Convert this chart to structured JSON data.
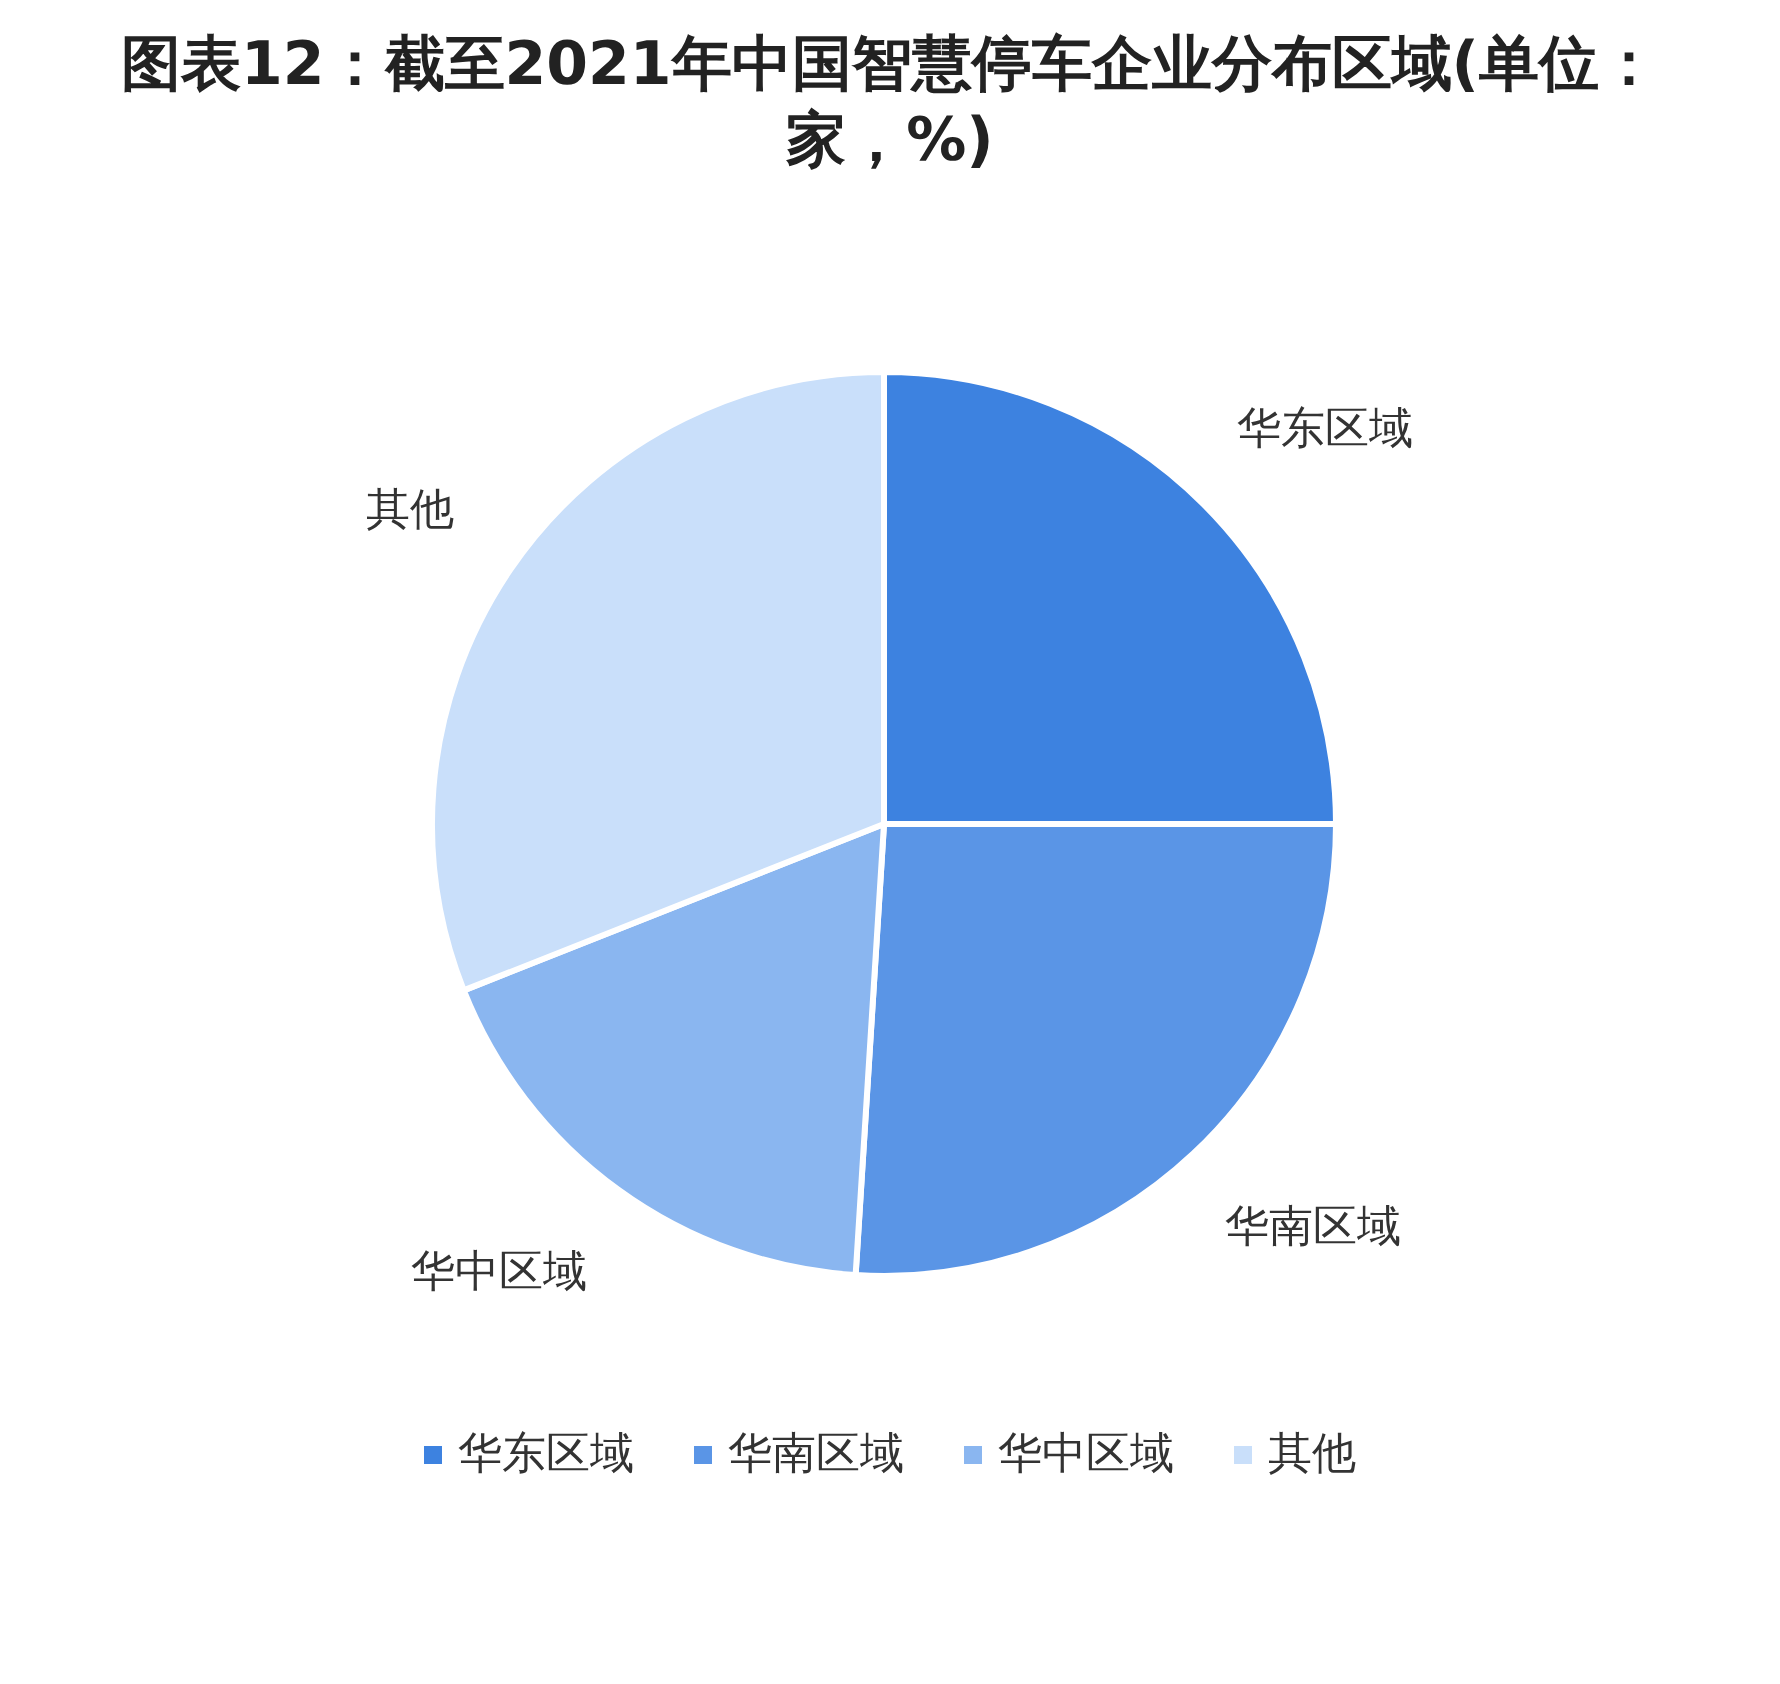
{
  "chart_data": {
    "type": "pie",
    "title": "图表12：截至2021年中国智慧停车企业分布区域(单位：家，%)",
    "categories": [
      "华东区域",
      "华南区域",
      "华中区域",
      "其他"
    ],
    "values": [
      25,
      26,
      18,
      31
    ],
    "colors": [
      "#3d82e0",
      "#5a95e6",
      "#8ab6f0",
      "#c9dffa"
    ],
    "legend": "bottom"
  }
}
